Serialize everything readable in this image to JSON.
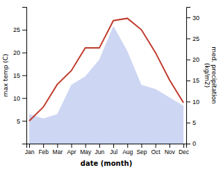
{
  "chart_data": {
    "type": "line",
    "categories": [
      "Jan",
      "Feb",
      "Mar",
      "Apr",
      "May",
      "Jun",
      "Jul",
      "Aug",
      "Sep",
      "Oct",
      "Nov",
      "Dec"
    ],
    "series": [
      {
        "type": "area",
        "axis": "y2",
        "color": "#b8c4ee",
        "values": [
          7,
          6,
          7,
          14,
          16,
          20,
          28,
          22,
          14,
          13,
          11,
          9
        ]
      },
      {
        "type": "line",
        "color": "#c0392b",
        "values": [
          5,
          8,
          13,
          16,
          21,
          21,
          27,
          27.5,
          25,
          20,
          14,
          9
        ]
      }
    ],
    "ylim": [
      0,
      30
    ],
    "yticks": [
      5,
      10,
      15,
      20,
      25
    ],
    "y2lim": [
      0,
      32.5
    ],
    "y2ticks": [
      0,
      5,
      10,
      15,
      20,
      25,
      30
    ],
    "x_label": "date (month)",
    "y_label": "max temp (C)",
    "y2_label": "med. precipitation\n(kg/m2)",
    "grid": false
  }
}
